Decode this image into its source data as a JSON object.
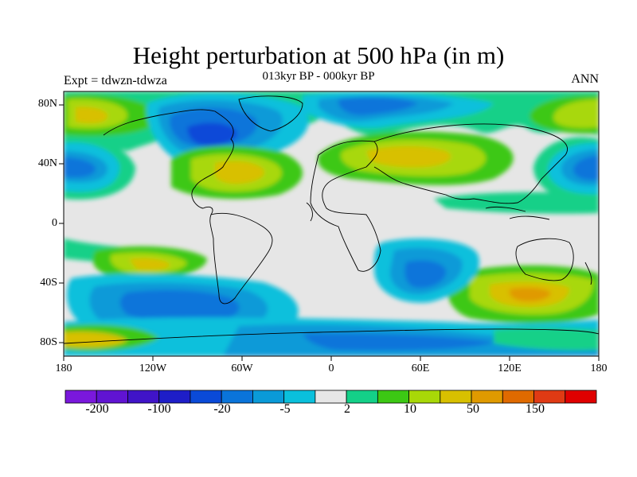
{
  "title": "Height perturbation at 500 hPa (in m)",
  "subtitle": "013kyr BP - 000kyr BP",
  "left_label": "Expt = tdwzn-tdwza",
  "right_label": "ANN",
  "lat_ticks": [
    "80N",
    "40N",
    "0",
    "40S",
    "80S"
  ],
  "lon_ticks": [
    "180",
    "120W",
    "60W",
    "0",
    "60E",
    "120E",
    "180"
  ],
  "colorbar": {
    "colors": [
      "#7a18dc",
      "#6014d2",
      "#4014c8",
      "#1e1ec8",
      "#0a4ad8",
      "#0a74da",
      "#0a9ad8",
      "#0ac0dc",
      "#e6e6e6",
      "#14d088",
      "#3cc814",
      "#a8d808",
      "#d8c000",
      "#e09a00",
      "#e06a00",
      "#e03a14",
      "#e00000"
    ],
    "labels": [
      "-200",
      "-100",
      "-20",
      "-5",
      "2",
      "10",
      "50",
      "150"
    ]
  }
}
